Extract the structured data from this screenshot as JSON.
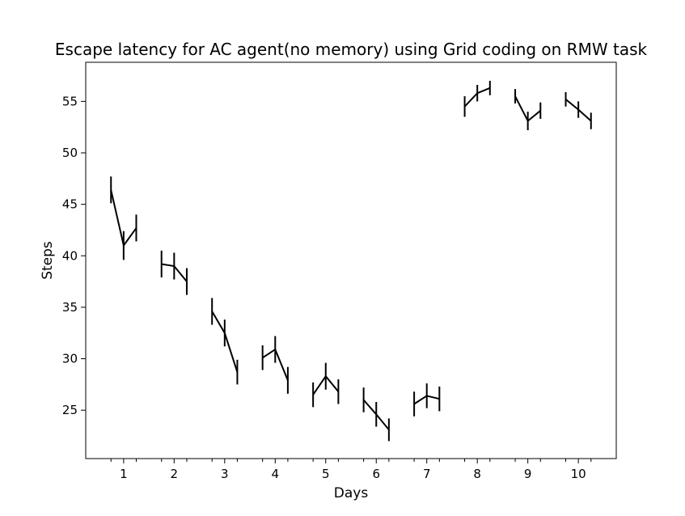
{
  "chart_data": {
    "type": "line",
    "title": "Escape latency for AC agent(no memory) using Grid coding on RMW task",
    "xlabel": "Days",
    "ylabel": "Steps",
    "xlim": [
      0.25,
      10.75
    ],
    "ylim": [
      20.3,
      58.8
    ],
    "x_ticks": [
      1,
      2,
      3,
      4,
      5,
      6,
      7,
      8,
      9,
      10
    ],
    "x_tick_labels": [
      "1",
      "2",
      "3",
      "4",
      "5",
      "6",
      "7",
      "8",
      "9",
      "10"
    ],
    "y_ticks": [
      25,
      30,
      35,
      40,
      45,
      50,
      55
    ],
    "y_tick_labels": [
      "25",
      "30",
      "35",
      "40",
      "45",
      "50",
      "55"
    ],
    "grid": false,
    "color": "#000000",
    "series": [
      {
        "x": [
          0.75,
          1.0,
          1.25
        ],
        "y": [
          46.4,
          41.0,
          42.7
        ],
        "err": [
          1.3,
          1.4,
          1.3
        ]
      },
      {
        "x": [
          1.75,
          2.0,
          2.25
        ],
        "y": [
          39.2,
          39.0,
          37.5
        ],
        "err": [
          1.3,
          1.3,
          1.3
        ]
      },
      {
        "x": [
          2.75,
          3.0,
          3.25
        ],
        "y": [
          34.6,
          32.5,
          28.7
        ],
        "err": [
          1.3,
          1.3,
          1.2
        ]
      },
      {
        "x": [
          3.75,
          4.0,
          4.25
        ],
        "y": [
          30.1,
          30.9,
          27.9
        ],
        "err": [
          1.2,
          1.3,
          1.3
        ]
      },
      {
        "x": [
          4.75,
          5.0,
          5.25
        ],
        "y": [
          26.5,
          28.3,
          26.8
        ],
        "err": [
          1.2,
          1.3,
          1.2
        ]
      },
      {
        "x": [
          5.75,
          6.0,
          6.25
        ],
        "y": [
          26.0,
          24.6,
          23.1
        ],
        "err": [
          1.2,
          1.2,
          1.1
        ]
      },
      {
        "x": [
          6.75,
          7.0,
          7.25
        ],
        "y": [
          25.6,
          26.4,
          26.1
        ],
        "err": [
          1.2,
          1.2,
          1.2
        ]
      },
      {
        "x": [
          7.75,
          8.0,
          8.25
        ],
        "y": [
          54.5,
          55.8,
          56.3
        ],
        "err": [
          1.0,
          0.8,
          0.7
        ]
      },
      {
        "x": [
          8.75,
          9.0,
          9.25
        ],
        "y": [
          55.5,
          53.1,
          54.1
        ],
        "err": [
          0.7,
          0.9,
          0.8
        ]
      },
      {
        "x": [
          9.75,
          10.0,
          10.25
        ],
        "y": [
          55.2,
          54.2,
          53.1
        ],
        "err": [
          0.7,
          0.8,
          0.8
        ]
      }
    ]
  }
}
